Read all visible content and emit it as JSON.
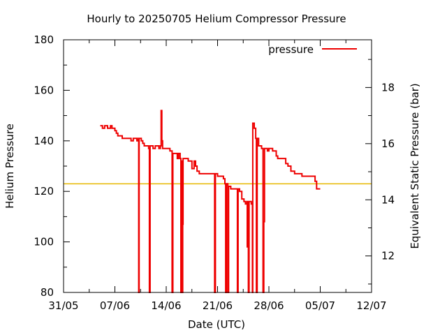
{
  "chart_data": {
    "type": "line",
    "title": "Hourly to 20250705 Helium Compressor Pressure",
    "xlabel": "Date (UTC)",
    "ylabel": "Helium Pressure",
    "y2label": "Equivalent Static Pressure (bar)",
    "xlim": [
      0,
      42
    ],
    "ylim": [
      80,
      180
    ],
    "y2lim": [
      10.7,
      19.7
    ],
    "x_ticks": [
      {
        "x": 0,
        "label": "31/05"
      },
      {
        "x": 7,
        "label": "07/06"
      },
      {
        "x": 14,
        "label": "14/06"
      },
      {
        "x": 21,
        "label": "21/06"
      },
      {
        "x": 28,
        "label": "28/06"
      },
      {
        "x": 35,
        "label": "05/07"
      },
      {
        "x": 42,
        "label": "12/07"
      }
    ],
    "y_ticks": [
      80,
      100,
      120,
      140,
      160,
      180
    ],
    "y2_ticks": [
      12,
      14,
      16,
      18
    ],
    "reference_line": {
      "y": 123,
      "color": "#e6b800"
    },
    "legend": {
      "position": "top-right"
    },
    "series": [
      {
        "name": "pressure",
        "color": "#ee0000",
        "points": [
          [
            5.0,
            146
          ],
          [
            5.3,
            145
          ],
          [
            5.6,
            146
          ],
          [
            6.0,
            145
          ],
          [
            6.4,
            146
          ],
          [
            6.6,
            145
          ],
          [
            6.8,
            145
          ],
          [
            7.0,
            144
          ],
          [
            7.2,
            143
          ],
          [
            7.4,
            142
          ],
          [
            8.0,
            141
          ],
          [
            8.5,
            141
          ],
          [
            9.0,
            141
          ],
          [
            9.2,
            140
          ],
          [
            9.5,
            141
          ],
          [
            10.0,
            140
          ],
          [
            10.2,
            141
          ],
          [
            10.25,
            80
          ],
          [
            10.3,
            141
          ],
          [
            10.6,
            140
          ],
          [
            10.8,
            139
          ],
          [
            11.0,
            138
          ],
          [
            11.5,
            138
          ],
          [
            11.6,
            137
          ],
          [
            11.7,
            80
          ],
          [
            11.8,
            138
          ],
          [
            12.2,
            137
          ],
          [
            12.5,
            138
          ],
          [
            13.0,
            137
          ],
          [
            13.2,
            138
          ],
          [
            13.3,
            152
          ],
          [
            13.4,
            140
          ],
          [
            13.5,
            137
          ],
          [
            14.0,
            137
          ],
          [
            14.5,
            136
          ],
          [
            14.8,
            80
          ],
          [
            14.9,
            135
          ],
          [
            15.2,
            135
          ],
          [
            15.5,
            133
          ],
          [
            15.7,
            135
          ],
          [
            15.9,
            133
          ],
          [
            16.0,
            80
          ],
          [
            16.1,
            132
          ],
          [
            16.2,
            80
          ],
          [
            16.25,
            107
          ],
          [
            16.3,
            133
          ],
          [
            17.0,
            132
          ],
          [
            17.5,
            129
          ],
          [
            17.8,
            132
          ],
          [
            18.0,
            130
          ],
          [
            18.2,
            128
          ],
          [
            18.5,
            127
          ],
          [
            19.0,
            127
          ],
          [
            19.5,
            127
          ],
          [
            20.0,
            127
          ],
          [
            20.5,
            127
          ],
          [
            20.6,
            80
          ],
          [
            20.7,
            127
          ],
          [
            21.0,
            126
          ],
          [
            21.5,
            126
          ],
          [
            21.8,
            125
          ],
          [
            22.0,
            123
          ],
          [
            22.1,
            80
          ],
          [
            22.2,
            123
          ],
          [
            22.4,
            80
          ],
          [
            22.5,
            122
          ],
          [
            22.8,
            121
          ],
          [
            23.0,
            121
          ],
          [
            23.5,
            121
          ],
          [
            23.7,
            80
          ],
          [
            23.8,
            121
          ],
          [
            24.0,
            120
          ],
          [
            24.3,
            117
          ],
          [
            24.6,
            116
          ],
          [
            24.8,
            115
          ],
          [
            25.0,
            116
          ],
          [
            25.05,
            98
          ],
          [
            25.1,
            116
          ],
          [
            25.2,
            80
          ],
          [
            25.3,
            116
          ],
          [
            25.6,
            115
          ],
          [
            25.75,
            80
          ],
          [
            25.8,
            147
          ],
          [
            26.0,
            145
          ],
          [
            26.2,
            141
          ],
          [
            26.3,
            80
          ],
          [
            26.4,
            141
          ],
          [
            26.6,
            138
          ],
          [
            27.0,
            137
          ],
          [
            27.2,
            80
          ],
          [
            27.3,
            108
          ],
          [
            27.4,
            137
          ],
          [
            27.8,
            136
          ],
          [
            28.0,
            137
          ],
          [
            28.5,
            136
          ],
          [
            29.0,
            134
          ],
          [
            29.2,
            133
          ],
          [
            29.5,
            133
          ],
          [
            30.0,
            133
          ],
          [
            30.3,
            131
          ],
          [
            30.6,
            130
          ],
          [
            31.0,
            128
          ],
          [
            31.5,
            127
          ],
          [
            32.0,
            127
          ],
          [
            32.5,
            126
          ],
          [
            33.0,
            126
          ],
          [
            33.5,
            126
          ],
          [
            34.0,
            126
          ],
          [
            34.3,
            124
          ],
          [
            34.5,
            121
          ],
          [
            35.0,
            121
          ]
        ]
      }
    ]
  }
}
